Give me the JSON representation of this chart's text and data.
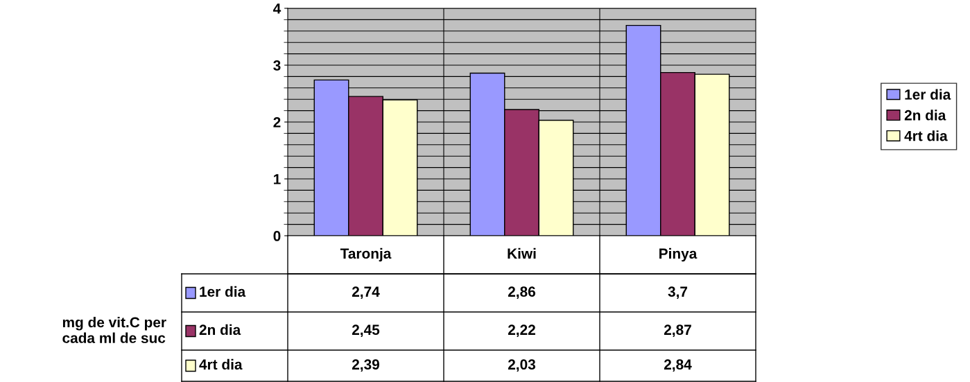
{
  "chart_data": {
    "type": "bar",
    "annotations": [
      "mg de vit.C per\ncada ml de suc"
    ],
    "categories": [
      "Taronja",
      "Kiwi",
      "Pinya"
    ],
    "series": [
      {
        "name": "1er dia",
        "color": "#9999ff",
        "values": [
          2.74,
          2.86,
          3.7
        ],
        "value_labels": [
          "2,74",
          "2,86",
          "3,7"
        ]
      },
      {
        "name": "2n dia",
        "color": "#993366",
        "values": [
          2.45,
          2.22,
          2.87
        ],
        "value_labels": [
          "2,45",
          "2,22",
          "2,87"
        ]
      },
      {
        "name": "4rt dia",
        "color": "#ffffcc",
        "values": [
          2.39,
          2.03,
          2.84
        ],
        "value_labels": [
          "2,39",
          "2,03",
          "2,84"
        ]
      }
    ],
    "ylim": [
      0,
      4
    ],
    "yticks": [
      0,
      1,
      2,
      3,
      4
    ],
    "grid": "y",
    "legend": "right"
  }
}
